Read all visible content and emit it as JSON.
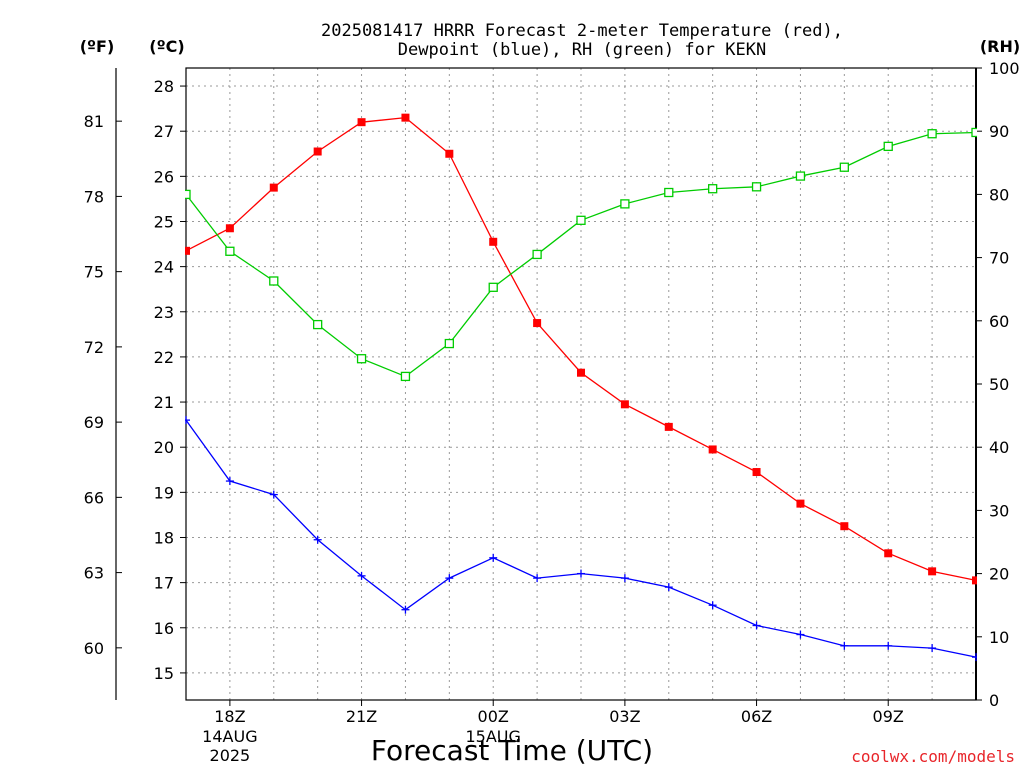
{
  "chart_data": {
    "type": "line",
    "title_line1": "2025081417 HRRR Forecast 2-meter Temperature (red),",
    "title_line2": "Dewpoint (blue), RH (green) for KEKN",
    "xlabel": "Forecast Time (UTC)",
    "credit": "coolwx.com/models",
    "unit_f": "(ºF)",
    "unit_c": "(ºC)",
    "unit_rh": "(RH)",
    "x_ticks": [
      {
        "x": 18,
        "label": "18Z",
        "sub": [
          "14AUG",
          "2025"
        ]
      },
      {
        "x": 21,
        "label": "21Z",
        "sub": []
      },
      {
        "x": 24,
        "label": "00Z",
        "sub": [
          "15AUG"
        ]
      },
      {
        "x": 27,
        "label": "03Z",
        "sub": []
      },
      {
        "x": 30,
        "label": "06Z",
        "sub": []
      },
      {
        "x": 33,
        "label": "09Z",
        "sub": []
      }
    ],
    "xlim": [
      17,
      35
    ],
    "c_ticks": [
      "15",
      "16",
      "17",
      "18",
      "19",
      "20",
      "21",
      "22",
      "23",
      "24",
      "25",
      "26",
      "27",
      "28"
    ],
    "c_lim": [
      14.4,
      28.4
    ],
    "f_ticks": [
      "60",
      "63",
      "66",
      "69",
      "72",
      "75",
      "78",
      "81"
    ],
    "f_lim": [
      57.92,
      83.12
    ],
    "rh_ticks": [
      "0",
      "10",
      "20",
      "30",
      "40",
      "50",
      "60",
      "70",
      "80",
      "90",
      "100"
    ],
    "rh_lim": [
      0,
      100
    ],
    "colors": {
      "temperature": "#ff0000",
      "dewpoint": "#0000ff",
      "rh": "#00cc00",
      "grid": "#999999"
    },
    "series": [
      {
        "key": "temperature",
        "axis": "c",
        "marker": "filled-square",
        "x": [
          17,
          18,
          19,
          20,
          21,
          22,
          23,
          24,
          25,
          26,
          27,
          28,
          29,
          30,
          31,
          32,
          33,
          34,
          35
        ],
        "values": [
          24.35,
          24.85,
          25.75,
          26.55,
          27.2,
          27.3,
          26.5,
          24.55,
          22.75,
          21.65,
          20.95,
          20.45,
          19.95,
          19.45,
          18.75,
          18.25,
          17.65,
          17.25,
          17.05
        ]
      },
      {
        "key": "dewpoint",
        "axis": "c",
        "marker": "plus",
        "x": [
          17,
          18,
          19,
          20,
          21,
          22,
          23,
          24,
          25,
          26,
          27,
          28,
          29,
          30,
          31,
          32,
          33,
          34,
          35
        ],
        "values": [
          20.6,
          19.25,
          18.95,
          17.95,
          17.15,
          16.4,
          17.1,
          17.55,
          17.1,
          17.2,
          17.1,
          16.9,
          16.5,
          16.05,
          15.85,
          15.6,
          15.6,
          15.55,
          15.35
        ]
      },
      {
        "key": "rh",
        "axis": "rh",
        "marker": "open-square",
        "x": [
          17,
          18,
          19,
          20,
          21,
          22,
          23,
          24,
          25,
          26,
          27,
          28,
          29,
          30,
          31,
          32,
          33,
          34,
          35
        ],
        "values": [
          80,
          71,
          66.3,
          59.4,
          54,
          51.2,
          56.4,
          65.3,
          70.5,
          75.9,
          78.5,
          80.3,
          80.9,
          81.2,
          82.9,
          84.3,
          87.6,
          89.6,
          89.8
        ]
      }
    ]
  }
}
